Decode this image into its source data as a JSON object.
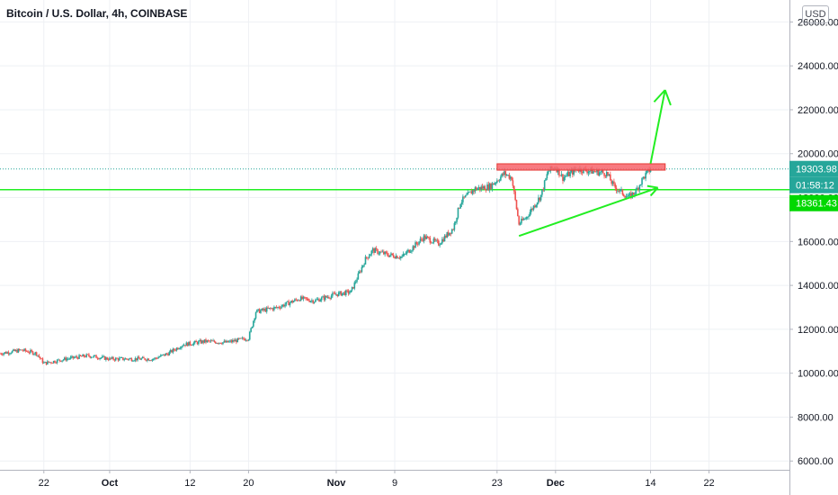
{
  "header": {
    "symbol_title": "Bitcoin / U.S. Dollar, 4h, COINBASE",
    "currency": "USD"
  },
  "price_labels": {
    "last_price": "19303.98",
    "countdown": "01:58:12",
    "support_level": "18361.43"
  },
  "colors": {
    "up": "#26a69a",
    "down": "#ef5350",
    "drawing_green": "#22ee22",
    "resistance_fill": "#f7636a",
    "resistance_stroke": "#e53935",
    "last_price_label": "#26a69a",
    "support_label": "#00d800"
  },
  "chart_data": {
    "type": "candlestick",
    "interval": "4h",
    "y_axis": {
      "ticks": [
        "26000.00",
        "24000.00",
        "22000.00",
        "20000.00",
        "18000.00",
        "16000.00",
        "14000.00",
        "12000.00",
        "10000.00",
        "8000.00",
        "6000.00"
      ],
      "range": [
        5600,
        27000
      ]
    },
    "x_axis": {
      "tick_labels": [
        "22",
        "Oct",
        "12",
        "20",
        "Nov",
        "9",
        "23",
        "Dec",
        "14",
        "22"
      ],
      "tick_dates": [
        "2020-09-22",
        "2020-10-01",
        "2020-10-12",
        "2020-10-20",
        "2020-11-01",
        "2020-11-09",
        "2020-11-23",
        "2020-12-01",
        "2020-12-14",
        "2020-12-22"
      ],
      "range": [
        "2020-09-16",
        "2021-01-02"
      ]
    },
    "price_path": [
      [
        "2020-09-16",
        10900
      ],
      [
        "2020-09-19",
        11050
      ],
      [
        "2020-09-21",
        10900
      ],
      [
        "2020-09-22",
        10450
      ],
      [
        "2020-09-25",
        10650
      ],
      [
        "2020-09-28",
        10800
      ],
      [
        "2020-10-01",
        10650
      ],
      [
        "2020-10-04",
        10650
      ],
      [
        "2020-10-07",
        10650
      ],
      [
        "2020-10-09",
        10900
      ],
      [
        "2020-10-11",
        11300
      ],
      [
        "2020-10-14",
        11450
      ],
      [
        "2020-10-17",
        11400
      ],
      [
        "2020-10-20",
        11600
      ],
      [
        "2020-10-21",
        12800
      ],
      [
        "2020-10-24",
        13000
      ],
      [
        "2020-10-27",
        13400
      ],
      [
        "2020-10-29",
        13300
      ],
      [
        "2020-11-01",
        13600
      ],
      [
        "2020-11-03",
        13700
      ],
      [
        "2020-11-05",
        15200
      ],
      [
        "2020-11-06",
        15600
      ],
      [
        "2020-11-08",
        15400
      ],
      [
        "2020-11-10",
        15300
      ],
      [
        "2020-11-13",
        16200
      ],
      [
        "2020-11-15",
        15900
      ],
      [
        "2020-11-17",
        16600
      ],
      [
        "2020-11-18",
        17800
      ],
      [
        "2020-11-20",
        18400
      ],
      [
        "2020-11-22",
        18500
      ],
      [
        "2020-11-24",
        19100
      ],
      [
        "2020-11-25",
        18900
      ],
      [
        "2020-11-26",
        16800
      ],
      [
        "2020-11-27",
        17100
      ],
      [
        "2020-11-29",
        18100
      ],
      [
        "2020-11-30",
        19200
      ],
      [
        "2020-12-01",
        19400
      ],
      [
        "2020-12-02",
        18900
      ],
      [
        "2020-12-04",
        19300
      ],
      [
        "2020-12-06",
        19200
      ],
      [
        "2020-12-08",
        19100
      ],
      [
        "2020-12-09",
        18500
      ],
      [
        "2020-12-11",
        18000
      ],
      [
        "2020-12-12",
        18300
      ],
      [
        "2020-12-13",
        18900
      ],
      [
        "2020-12-14",
        19300
      ]
    ],
    "last_price": 19303.98,
    "support_level": 18361.43,
    "drawings": {
      "resistance_zone": {
        "from": "2020-11-23",
        "to": "2020-12-16",
        "low": 19250,
        "high": 19540
      },
      "horizontal_line": {
        "price": 18361.43
      },
      "rising_trendline": {
        "from": [
          "2020-11-26",
          16250
        ],
        "to": [
          "2020-12-15",
          18450
        ]
      },
      "breakout_arrow": {
        "from": [
          "2020-12-14",
          19550
        ],
        "to": [
          "2020-12-15",
          22900
        ]
      },
      "trend_arrow_head": {
        "at": [
          "2020-12-15",
          18450
        ]
      }
    }
  }
}
